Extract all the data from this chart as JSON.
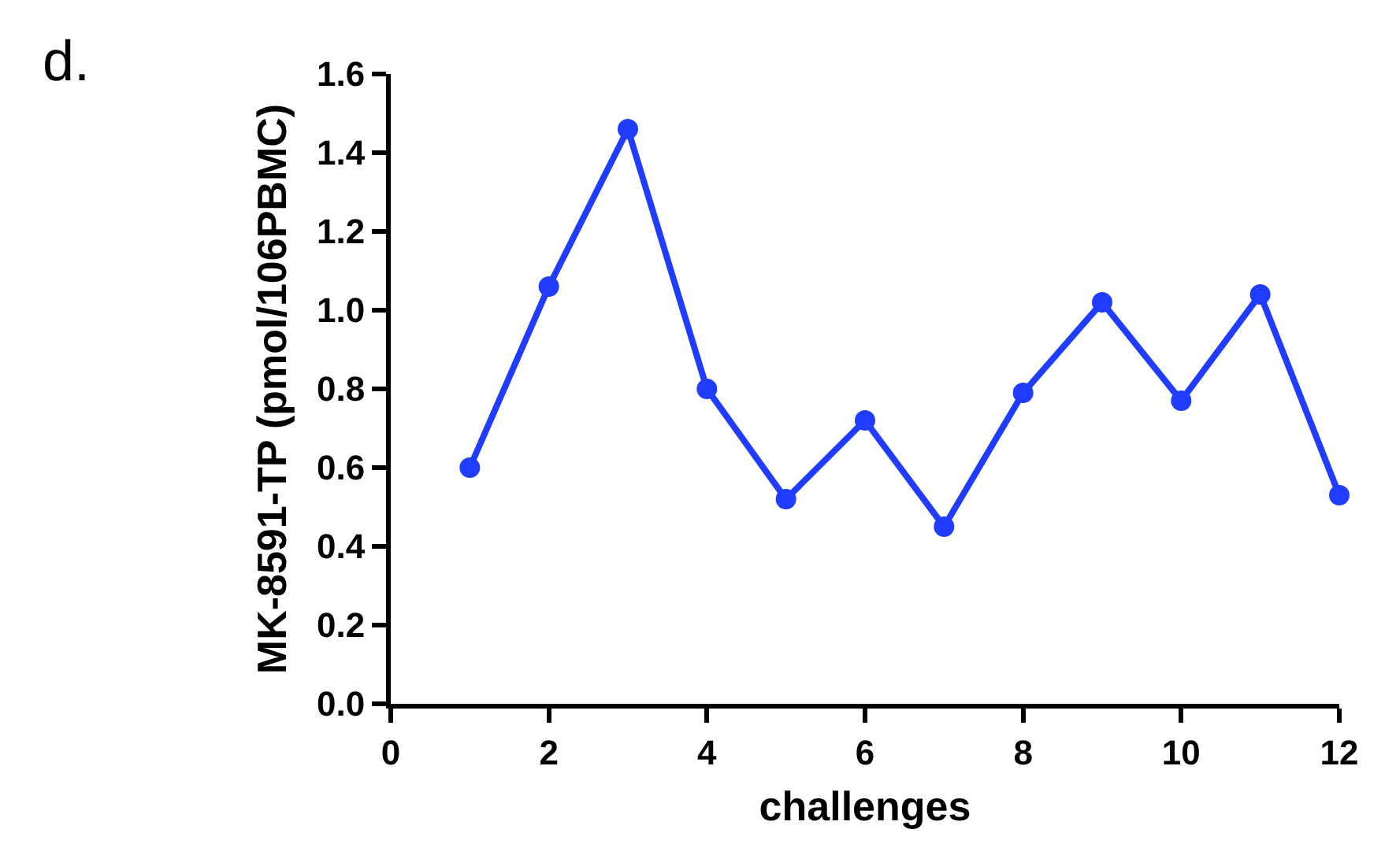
{
  "chart_data": {
    "type": "line",
    "xlabel": "challenges",
    "ylabel": "MK-8591-TP (pmol/106PBMC)",
    "annotations": [
      "d."
    ],
    "x": [
      1,
      2,
      3,
      4,
      5,
      6,
      7,
      8,
      9,
      10,
      11,
      12
    ],
    "series": [
      {
        "color": "#1f3cff",
        "values": [
          0.6,
          1.06,
          1.46,
          0.8,
          0.52,
          0.72,
          0.45,
          0.79,
          1.02,
          0.77,
          1.04,
          0.53
        ]
      }
    ],
    "xlim": [
      0,
      12
    ],
    "xticks": [
      0,
      2,
      4,
      6,
      8,
      10,
      12
    ],
    "ylim": [
      0,
      1.6
    ],
    "yticks": [
      {
        "value": 0,
        "label": "0.0"
      },
      {
        "value": 0.2,
        "label": "0.2"
      },
      {
        "value": 0.4,
        "label": "0.4"
      },
      {
        "value": 0.6,
        "label": "0.6"
      },
      {
        "value": 0.8,
        "label": "0.8"
      },
      {
        "value": 1,
        "label": "1.0"
      },
      {
        "value": 1.2,
        "label": "1.2"
      },
      {
        "value": 1.4,
        "label": "1.4"
      },
      {
        "value": 1.6,
        "label": "1.6"
      }
    ],
    "grid": false,
    "legend": false,
    "marker": "circle",
    "line_style": "solid"
  }
}
